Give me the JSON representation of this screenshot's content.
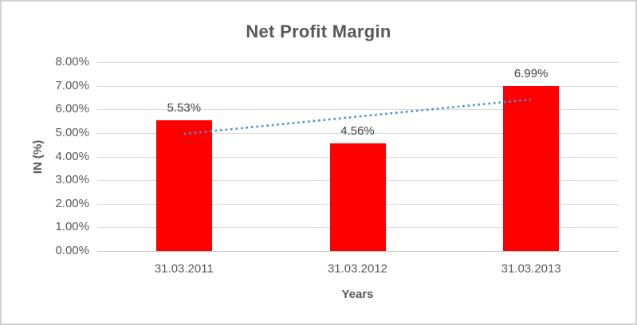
{
  "chart_data": {
    "type": "bar",
    "title": "Net Profit Margin",
    "categories": [
      "31.03.2011",
      "31.03.2012",
      "31.03.2013"
    ],
    "values": [
      5.53,
      4.56,
      6.99
    ],
    "data_labels": [
      "5.53%",
      "4.56%",
      "6.99%"
    ],
    "xlabel": "Years",
    "ylabel": "IN (%)",
    "ylim": [
      0,
      8
    ],
    "ytick_step": 1,
    "ytick_labels": [
      "0.00%",
      "1.00%",
      "2.00%",
      "3.00%",
      "4.00%",
      "5.00%",
      "6.00%",
      "7.00%",
      "8.00%"
    ],
    "grid": true,
    "legend": "none",
    "bar_color": "#ff0000",
    "trendline": {
      "type": "linear",
      "style": "dotted",
      "color": "#4e8ed3",
      "start_value": 4.96,
      "end_value": 6.42
    },
    "colors": {
      "title": "#595959",
      "tick_label": "#595959",
      "axis_title": "#595959",
      "data_label": "#404040",
      "gridline": "#d9d9d9",
      "axis_line": "#bfbfbf",
      "frame_border": "#d2d2d2",
      "background": "#ffffff"
    }
  }
}
